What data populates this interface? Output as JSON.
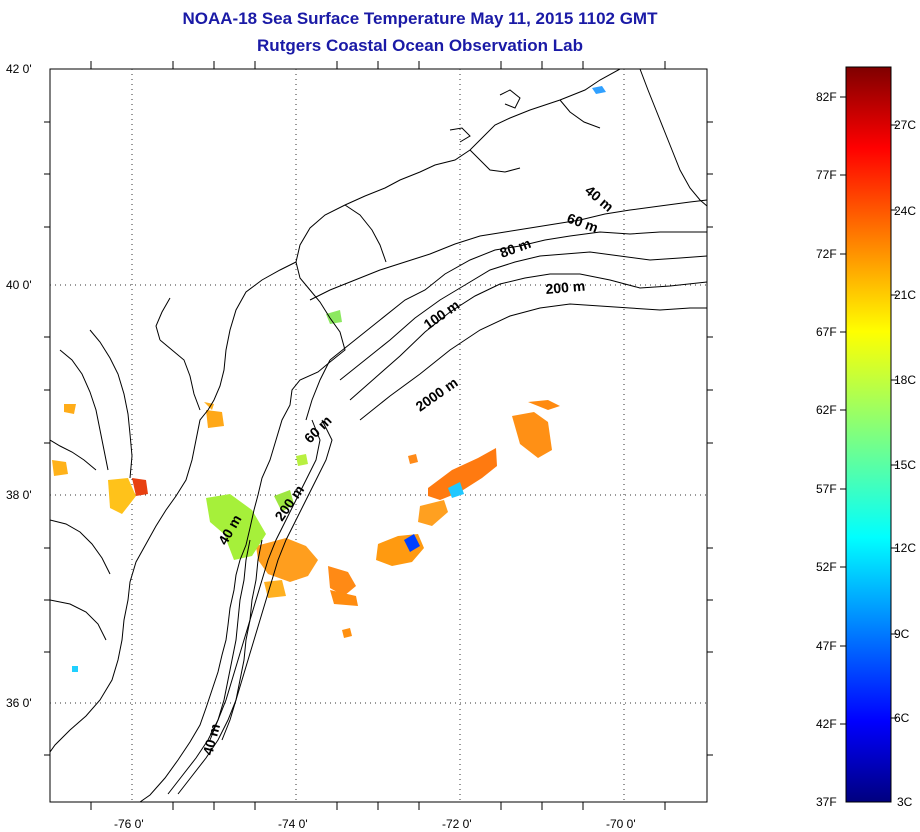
{
  "header": {
    "title": "NOAA-18 Sea Surface Temperature May 11, 2015 1102 GMT",
    "subtitle": "Rutgers Coastal Ocean Observation Lab"
  },
  "map": {
    "lat_labels": [
      "42 0'",
      "40 0'",
      "38 0'",
      "36 0'"
    ],
    "lon_labels": [
      "-76 0'",
      "-74 0'",
      "-72 0'",
      "-70 0'"
    ],
    "lat_range": [
      35,
      42
    ],
    "lon_range": [
      -77,
      -69
    ],
    "grid": "dotted",
    "isobath_labels": [
      "40 m",
      "60 m",
      "80 m",
      "200 m",
      "100 m",
      "2000 m",
      "60 m",
      "200 m",
      "40 m",
      "40 m"
    ]
  },
  "colorbar": {
    "fahrenheit_labels": [
      "82F",
      "77F",
      "72F",
      "67F",
      "62F",
      "57F",
      "52F",
      "47F",
      "42F",
      "37F"
    ],
    "celsius_labels": [
      "27C",
      "24C",
      "21C",
      "18C",
      "15C",
      "12C",
      "9C",
      "6C",
      "3C"
    ],
    "colormap": "jet",
    "range_celsius": [
      3,
      28
    ]
  },
  "colors": {
    "title": "#1a1aa6",
    "land_line": "#000000",
    "background": "#ffffff"
  }
}
